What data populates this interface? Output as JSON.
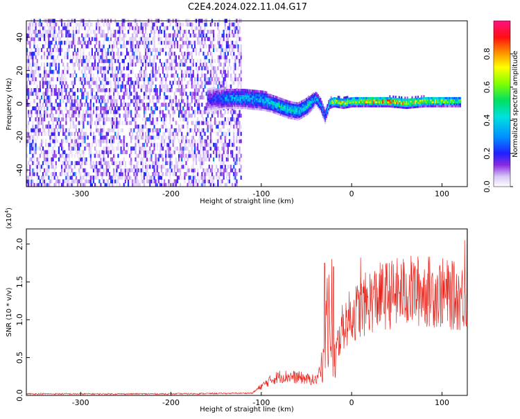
{
  "title": "C2E4.2024.022.11.04.G17",
  "chart_data": [
    {
      "type": "heatmap",
      "xlabel": "Height of straight line (km)",
      "ylabel": "Frequency (Hz)",
      "xlim": [
        -360,
        128
      ],
      "ylim": [
        -50,
        50
      ],
      "xticks": [
        -300,
        -200,
        -100,
        0,
        100
      ],
      "xtick_labels": [
        "-300",
        "-200",
        "-100",
        "0",
        "100"
      ],
      "yticks": [
        -40,
        -20,
        0,
        20,
        40
      ],
      "ytick_labels": [
        "-40",
        "-20",
        "0",
        "20",
        "40"
      ],
      "colorbar": {
        "label": "Normalized spectral amplitude",
        "range": [
          0,
          1
        ],
        "ticks": [
          0.0,
          0.2,
          0.4,
          0.6,
          0.8
        ],
        "tick_labels": [
          "0.0",
          "0.2",
          "0.4",
          "0.6",
          "0.8"
        ],
        "colormap": "rainbow"
      },
      "noise_region": {
        "x_range": [
          -360,
          -122
        ],
        "freq_range": [
          -50,
          50
        ],
        "typical_amplitude": 0.12
      },
      "ridge": {
        "x": [
          -160,
          -140,
          -120,
          -100,
          -90,
          -80,
          -70,
          -60,
          -50,
          -40,
          -35,
          -30,
          -25,
          -20,
          -10,
          0,
          20,
          40,
          60,
          80,
          100,
          120
        ],
        "center_freq": [
          2,
          3,
          3,
          2,
          0,
          -2,
          -4,
          -5,
          -2,
          3,
          -1,
          -8,
          0,
          1,
          0,
          1,
          1,
          1,
          0,
          1,
          1,
          1
        ],
        "halfwidth": [
          7,
          6,
          6,
          6,
          5,
          5,
          5,
          5,
          5,
          4,
          4,
          4,
          3,
          3,
          3,
          3,
          3,
          3,
          3,
          3,
          3,
          3
        ],
        "amplitude": [
          0.2,
          0.35,
          0.4,
          0.4,
          0.45,
          0.5,
          0.45,
          0.45,
          0.5,
          0.4,
          0.35,
          0.3,
          0.55,
          0.8,
          0.85,
          0.75,
          0.85,
          0.9,
          0.85,
          0.8,
          0.7,
          0.6
        ]
      },
      "grid": false
    },
    {
      "type": "line",
      "xlabel": "Height of straight line (km)",
      "ylabel": "SNR (10 * v/v)",
      "yscale_label": "(x10",
      "yscale_exp": "4",
      "yscale_close": ")",
      "xlim": [
        -360,
        128
      ],
      "ylim": [
        0,
        2.2
      ],
      "xticks": [
        -300,
        -200,
        -100,
        0,
        100
      ],
      "xtick_labels": [
        "-300",
        "-200",
        "-100",
        "0",
        "100"
      ],
      "yticks": [
        0.0,
        0.5,
        1.0,
        1.5,
        2.0
      ],
      "ytick_labels": [
        "0.0",
        "0.5",
        "1.0",
        "1.5",
        "2.0"
      ],
      "series": [
        {
          "color": "#e8241c",
          "envelope_x": [
            -360,
            -200,
            -110,
            -100,
            -90,
            -80,
            -70,
            -60,
            -50,
            -40,
            -35,
            -30,
            -28,
            -25,
            -22,
            -20,
            -15,
            -10,
            -5,
            0,
            10,
            20,
            30,
            40,
            50,
            60,
            70,
            80,
            90,
            100,
            110,
            120,
            128
          ],
          "envelope_y": [
            0.02,
            0.02,
            0.03,
            0.12,
            0.2,
            0.25,
            0.25,
            0.24,
            0.22,
            0.2,
            0.3,
            0.75,
            1.1,
            1.2,
            0.9,
            0.45,
            0.7,
            0.9,
            1.0,
            1.05,
            1.15,
            1.25,
            1.3,
            1.33,
            1.35,
            1.37,
            1.38,
            1.38,
            1.37,
            1.35,
            1.32,
            1.3,
            1.3
          ],
          "peak_x": [
            -30,
            -27,
            -22,
            -20,
            10,
            125,
            128
          ],
          "peak_y": [
            1.75,
            1.55,
            1.8,
            1.7,
            1.82,
            2.05,
            2.2
          ]
        }
      ],
      "grid": false
    }
  ]
}
